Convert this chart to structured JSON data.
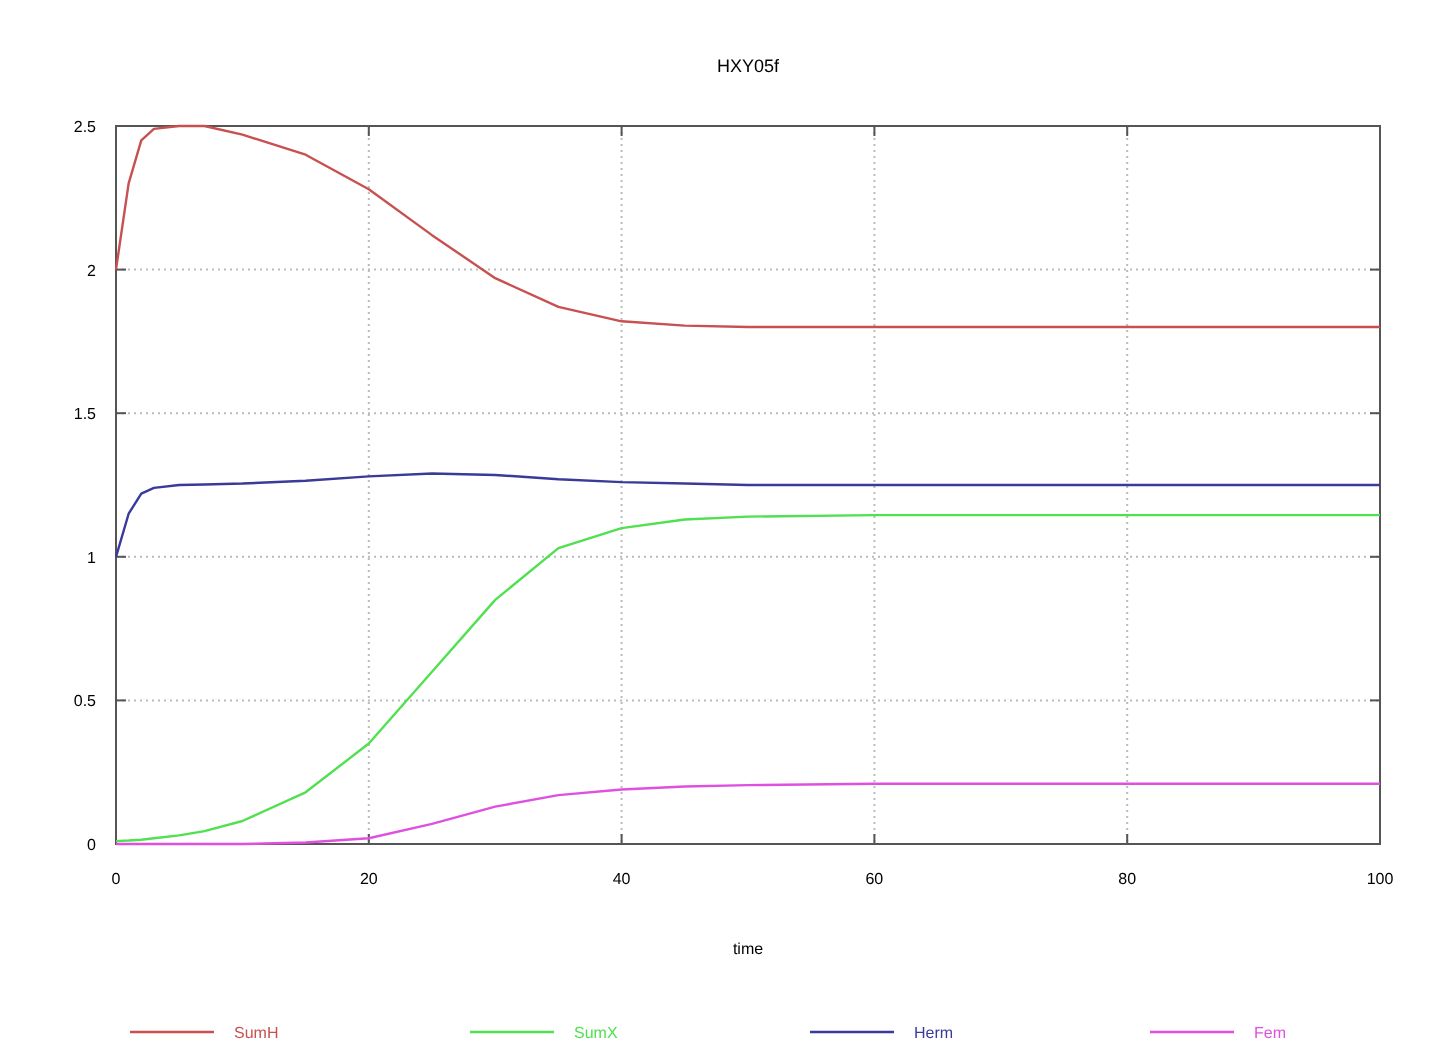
{
  "chart_data": {
    "type": "line",
    "title": "HXY05f",
    "xlabel": "time",
    "x": [
      0,
      1,
      2,
      3,
      5,
      7,
      10,
      15,
      20,
      25,
      30,
      35,
      40,
      45,
      50,
      60,
      70,
      80,
      90,
      100
    ],
    "xlim": [
      0,
      100
    ],
    "xticks": [
      0,
      20,
      40,
      60,
      80,
      100
    ],
    "ylim": [
      0,
      2.5
    ],
    "yticks": [
      0,
      0.5,
      1,
      1.5,
      2,
      2.5
    ],
    "grid": true,
    "legend": "bottom",
    "line_style": "solid",
    "marker": "none",
    "series": [
      {
        "name": "SumH",
        "color": "#c85050",
        "values": [
          2.0,
          2.3,
          2.45,
          2.49,
          2.5,
          2.5,
          2.47,
          2.4,
          2.28,
          2.12,
          1.97,
          1.87,
          1.82,
          1.805,
          1.8,
          1.8,
          1.8,
          1.8,
          1.8,
          1.8
        ]
      },
      {
        "name": "SumX",
        "color": "#50e050",
        "values": [
          0.01,
          0.012,
          0.015,
          0.02,
          0.03,
          0.045,
          0.08,
          0.18,
          0.35,
          0.6,
          0.85,
          1.03,
          1.1,
          1.13,
          1.14,
          1.145,
          1.145,
          1.145,
          1.145,
          1.145
        ]
      },
      {
        "name": "Herm",
        "color": "#3a3a9a",
        "values": [
          1.0,
          1.15,
          1.22,
          1.24,
          1.25,
          1.252,
          1.255,
          1.265,
          1.28,
          1.29,
          1.285,
          1.27,
          1.26,
          1.255,
          1.25,
          1.25,
          1.25,
          1.25,
          1.25,
          1.25
        ]
      },
      {
        "name": "Fem",
        "color": "#e050e0",
        "values": [
          0,
          0,
          0,
          0,
          0,
          0,
          0,
          0.005,
          0.02,
          0.07,
          0.13,
          0.17,
          0.19,
          0.2,
          0.205,
          0.21,
          0.21,
          0.21,
          0.21,
          0.21
        ]
      }
    ]
  }
}
